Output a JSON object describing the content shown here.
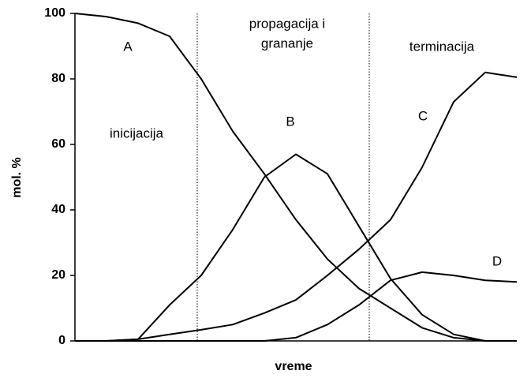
{
  "chart_data": {
    "type": "line",
    "ylabel": "mol. %",
    "xlabel": "vreme",
    "ylim": [
      0,
      100
    ],
    "yticks": [
      0,
      20,
      40,
      60,
      80,
      100
    ],
    "categories": [
      null,
      null,
      null,
      null,
      null,
      null,
      null,
      null,
      null,
      null,
      null,
      null,
      null,
      null,
      null
    ],
    "series": [
      {
        "name": "A",
        "color": "#000000",
        "values": [
          100,
          99,
          97,
          93,
          80,
          64,
          51,
          37,
          25,
          16,
          10,
          4,
          1,
          0,
          0
        ]
      },
      {
        "name": "B",
        "color": "#000000",
        "values": [
          0,
          0,
          0.5,
          11,
          20,
          34,
          50,
          57,
          51,
          35,
          19,
          8,
          2,
          0,
          0
        ]
      },
      {
        "name": "C",
        "color": "#000000",
        "values": [
          0,
          0,
          0.5,
          2,
          3.4,
          5,
          8.5,
          12.5,
          20,
          28,
          37,
          53,
          73,
          82,
          80.5
        ]
      },
      {
        "name": "D",
        "color": "#000000",
        "values": [
          0,
          0,
          0,
          0,
          0,
          0,
          0,
          1,
          5,
          11,
          18.5,
          21,
          20,
          18.5,
          18
        ]
      }
    ],
    "annotations": [
      "inicijacija",
      "propagacija i",
      "grananje",
      "terminacija"
    ]
  }
}
